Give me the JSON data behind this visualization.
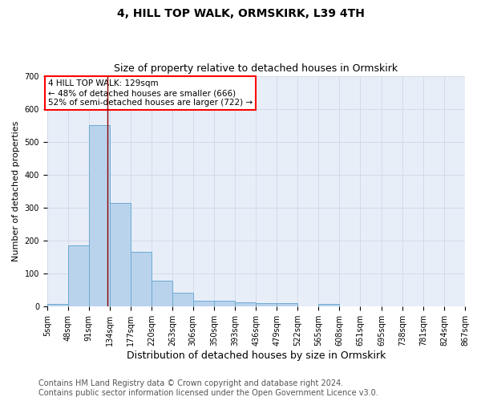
{
  "title": "4, HILL TOP WALK, ORMSKIRK, L39 4TH",
  "subtitle": "Size of property relative to detached houses in Ormskirk",
  "xlabel": "Distribution of detached houses by size in Ormskirk",
  "ylabel": "Number of detached properties",
  "footer_line1": "Contains HM Land Registry data © Crown copyright and database right 2024.",
  "footer_line2": "Contains public sector information licensed under the Open Government Licence v3.0.",
  "bin_edges": [
    5,
    48,
    91,
    134,
    177,
    220,
    263,
    306,
    350,
    393,
    436,
    479,
    522,
    565,
    608,
    651,
    695,
    738,
    781,
    824,
    867
  ],
  "bar_heights": [
    8,
    185,
    550,
    315,
    165,
    78,
    43,
    17,
    17,
    13,
    10,
    10,
    0,
    7,
    0,
    0,
    0,
    0,
    0,
    0
  ],
  "bar_color": "#bad3ec",
  "bar_edge_color": "#6aaad4",
  "grid_color": "#d0d8e8",
  "bg_color": "#e8eef8",
  "red_line_x": 129,
  "annotation_text": "4 HILL TOP WALK: 129sqm\n← 48% of detached houses are smaller (666)\n52% of semi-detached houses are larger (722) →",
  "annotation_box_color": "white",
  "annotation_box_edge": "red",
  "ylim": [
    0,
    700
  ],
  "yticks": [
    0,
    100,
    200,
    300,
    400,
    500,
    600,
    700
  ],
  "title_fontsize": 10,
  "subtitle_fontsize": 9,
  "ylabel_fontsize": 8,
  "xlabel_fontsize": 9,
  "tick_fontsize": 7,
  "footer_fontsize": 7,
  "annotation_fontsize": 7.5
}
